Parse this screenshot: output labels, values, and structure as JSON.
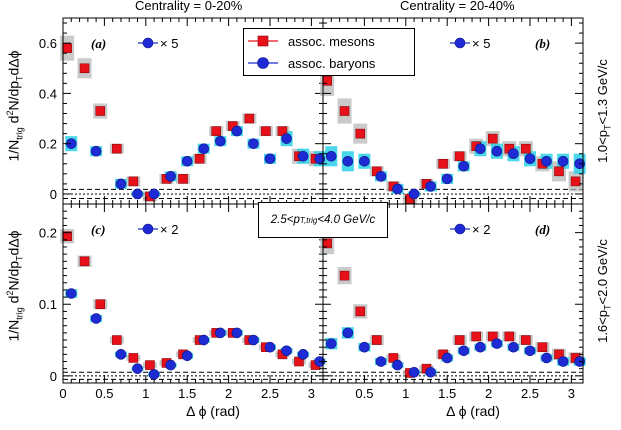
{
  "header": {
    "left_title": "Centrality = 0-20%",
    "right_title": "Centrality = 20-40%"
  },
  "legend": {
    "mesons": "assoc. mesons",
    "baryons": "assoc. baryons"
  },
  "trigger_box": "2.5<p",
  "trigger_sub": "T,trig",
  "trigger_tail": "<4.0 GeV/c",
  "right_labels": {
    "top_pre": "1.0<p",
    "top_sub": "T",
    "top_post": "<1.3 GeV/c",
    "bottom_pre": "1.6<p",
    "bottom_sub": "T",
    "bottom_post": "<2.0 GeV/c"
  },
  "colors": {
    "meson": "#e8111a",
    "baryon": "#1e2bd4",
    "meson_err": "#b4b4b4",
    "baryon_err": "#2ad0e8"
  },
  "chart_data": [
    {
      "type": "scatter",
      "panel_label": "(a)",
      "scale_note": "× 5",
      "xlabel": "",
      "ylabel": "1/N_trig d²N/dp_T dΔφ",
      "xlim": [
        0,
        3.14
      ],
      "ylim": [
        -0.04,
        0.7
      ],
      "xticks": [],
      "yticks": [
        "0",
        "0.2",
        "0.4",
        "0.6"
      ],
      "ytick_values": [
        0,
        0.2,
        0.4,
        0.6
      ],
      "baseline_lines": [
        0.018,
        0.0,
        -0.018
      ],
      "series": [
        {
          "name": "assoc. mesons",
          "x": [
            0.05,
            0.26,
            0.45,
            0.65,
            0.85,
            1.05,
            1.25,
            1.45,
            1.65,
            1.85,
            2.05,
            2.25,
            2.45,
            2.65,
            2.85,
            3.05
          ],
          "y": [
            0.58,
            0.5,
            0.33,
            0.18,
            0.05,
            -0.01,
            0.06,
            0.06,
            0.14,
            0.25,
            0.27,
            0.3,
            0.25,
            0.25,
            0.15,
            0.14
          ],
          "err": [
            0.05,
            0.04,
            0.03,
            0.02,
            0.02,
            0.02,
            0.02,
            0.02,
            0.02,
            0.02,
            0.02,
            0.02,
            0.02,
            0.02,
            0.03,
            0.03
          ]
        },
        {
          "name": "assoc. baryons",
          "x": [
            0.1,
            0.4,
            0.7,
            0.9,
            1.1,
            1.3,
            1.5,
            1.7,
            1.9,
            2.1,
            2.3,
            2.5,
            2.7,
            2.9,
            3.1
          ],
          "y": [
            0.2,
            0.17,
            0.04,
            0.0,
            0.0,
            0.07,
            0.13,
            0.18,
            0.21,
            0.25,
            0.2,
            0.14,
            0.22,
            0.15,
            0.14
          ],
          "err": [
            0.03,
            0.02,
            0.02,
            0.01,
            0.01,
            0.02,
            0.02,
            0.02,
            0.02,
            0.02,
            0.02,
            0.02,
            0.03,
            0.03,
            0.03
          ]
        }
      ]
    },
    {
      "type": "scatter",
      "panel_label": "(b)",
      "scale_note": "× 5",
      "xlabel": "",
      "ylabel": "",
      "xlim": [
        0,
        3.14
      ],
      "ylim": [
        -0.04,
        0.7
      ],
      "xticks": [],
      "yticks": [],
      "baseline_lines": [
        0.018,
        0.0,
        -0.018
      ],
      "series": [
        {
          "name": "assoc. mesons",
          "x": [
            0.05,
            0.26,
            0.45,
            0.65,
            0.85,
            1.05,
            1.25,
            1.45,
            1.65,
            1.85,
            2.05,
            2.25,
            2.45,
            2.65,
            2.85,
            3.05
          ],
          "y": [
            0.45,
            0.33,
            0.24,
            0.09,
            0.03,
            -0.02,
            0.04,
            0.12,
            0.15,
            0.19,
            0.22,
            0.18,
            0.18,
            0.12,
            0.09,
            0.05
          ],
          "err": [
            0.06,
            0.05,
            0.04,
            0.02,
            0.02,
            0.02,
            0.02,
            0.02,
            0.02,
            0.03,
            0.03,
            0.03,
            0.03,
            0.03,
            0.04,
            0.04
          ]
        },
        {
          "name": "assoc. baryons",
          "x": [
            0.1,
            0.3,
            0.5,
            0.7,
            0.9,
            1.1,
            1.3,
            1.5,
            1.7,
            1.9,
            2.1,
            2.3,
            2.5,
            2.7,
            2.9,
            3.1
          ],
          "y": [
            0.15,
            0.13,
            0.13,
            0.07,
            0.02,
            0.0,
            0.03,
            0.06,
            0.11,
            0.18,
            0.17,
            0.16,
            0.14,
            0.13,
            0.13,
            0.12
          ],
          "err": [
            0.04,
            0.04,
            0.03,
            0.02,
            0.02,
            0.01,
            0.02,
            0.02,
            0.02,
            0.03,
            0.03,
            0.03,
            0.03,
            0.03,
            0.03,
            0.04
          ]
        }
      ]
    },
    {
      "type": "scatter",
      "panel_label": "(c)",
      "scale_note": "× 2",
      "xlabel": "Δ ϕ (rad)",
      "ylabel": "1/N_trig d²N/dp_T dΔφ",
      "xlim": [
        0,
        3.14
      ],
      "ylim": [
        -0.01,
        0.24
      ],
      "xticks": [
        "0",
        "0.5",
        "1",
        "1.5",
        "2",
        "2.5",
        "3"
      ],
      "xtick_values": [
        0,
        0.5,
        1,
        1.5,
        2,
        2.5,
        3
      ],
      "yticks": [
        "0",
        "0.1",
        "0.2"
      ],
      "ytick_values": [
        0,
        0.1,
        0.2
      ],
      "baseline_lines": [
        0.005,
        0.0,
        -0.005
      ],
      "series": [
        {
          "name": "assoc. mesons",
          "x": [
            0.05,
            0.26,
            0.45,
            0.65,
            0.85,
            1.05,
            1.25,
            1.45,
            1.65,
            1.85,
            2.05,
            2.25,
            2.45,
            2.65,
            2.85,
            3.05
          ],
          "y": [
            0.195,
            0.16,
            0.1,
            0.05,
            0.025,
            0.015,
            0.018,
            0.03,
            0.05,
            0.06,
            0.06,
            0.05,
            0.04,
            0.03,
            0.02,
            0.015
          ],
          "err": [
            0.01,
            0.008,
            0.007,
            0.005,
            0.004,
            0.004,
            0.004,
            0.004,
            0.004,
            0.004,
            0.004,
            0.004,
            0.004,
            0.004,
            0.004,
            0.004
          ]
        },
        {
          "name": "assoc. baryons",
          "x": [
            0.1,
            0.4,
            0.7,
            0.9,
            1.1,
            1.3,
            1.5,
            1.7,
            1.9,
            2.1,
            2.3,
            2.5,
            2.7,
            2.9,
            3.1
          ],
          "y": [
            0.115,
            0.08,
            0.03,
            0.01,
            0.002,
            0.015,
            0.028,
            0.05,
            0.06,
            0.06,
            0.05,
            0.04,
            0.035,
            0.03,
            0.02
          ],
          "err": [
            0.006,
            0.005,
            0.004,
            0.003,
            0.003,
            0.003,
            0.004,
            0.004,
            0.004,
            0.004,
            0.004,
            0.004,
            0.004,
            0.004,
            0.004
          ]
        }
      ]
    },
    {
      "type": "scatter",
      "panel_label": "(d)",
      "scale_note": "× 2",
      "xlabel": "Δ ϕ (rad)",
      "ylabel": "",
      "xlim": [
        0,
        3.14
      ],
      "ylim": [
        -0.01,
        0.24
      ],
      "xticks": [
        "0.5",
        "1",
        "1.5",
        "2",
        "2.5",
        "3"
      ],
      "xtick_values": [
        0.5,
        1,
        1.5,
        2,
        2.5,
        3
      ],
      "yticks": [],
      "baseline_lines": [
        0.005,
        0.0,
        -0.005
      ],
      "series": [
        {
          "name": "assoc. mesons",
          "x": [
            0.05,
            0.26,
            0.45,
            0.65,
            0.85,
            1.05,
            1.25,
            1.45,
            1.65,
            1.85,
            2.05,
            2.25,
            2.45,
            2.65,
            2.85,
            3.05
          ],
          "y": [
            0.185,
            0.14,
            0.09,
            0.05,
            0.025,
            0.004,
            0.01,
            0.03,
            0.05,
            0.055,
            0.055,
            0.055,
            0.05,
            0.04,
            0.03,
            0.025
          ],
          "err": [
            0.015,
            0.012,
            0.01,
            0.007,
            0.005,
            0.004,
            0.005,
            0.006,
            0.007,
            0.007,
            0.007,
            0.007,
            0.007,
            0.007,
            0.008,
            0.008
          ]
        },
        {
          "name": "assoc. baryons",
          "x": [
            0.1,
            0.3,
            0.5,
            0.7,
            0.9,
            1.1,
            1.3,
            1.5,
            1.7,
            1.9,
            2.1,
            2.3,
            2.5,
            2.7,
            2.9,
            3.1
          ],
          "y": [
            0.045,
            0.06,
            0.04,
            0.02,
            0.015,
            0.005,
            0.005,
            0.025,
            0.035,
            0.04,
            0.045,
            0.04,
            0.035,
            0.025,
            0.02,
            0.02
          ],
          "err": [
            0.008,
            0.008,
            0.006,
            0.005,
            0.004,
            0.003,
            0.004,
            0.005,
            0.005,
            0.005,
            0.005,
            0.005,
            0.005,
            0.005,
            0.006,
            0.006
          ]
        }
      ]
    }
  ]
}
